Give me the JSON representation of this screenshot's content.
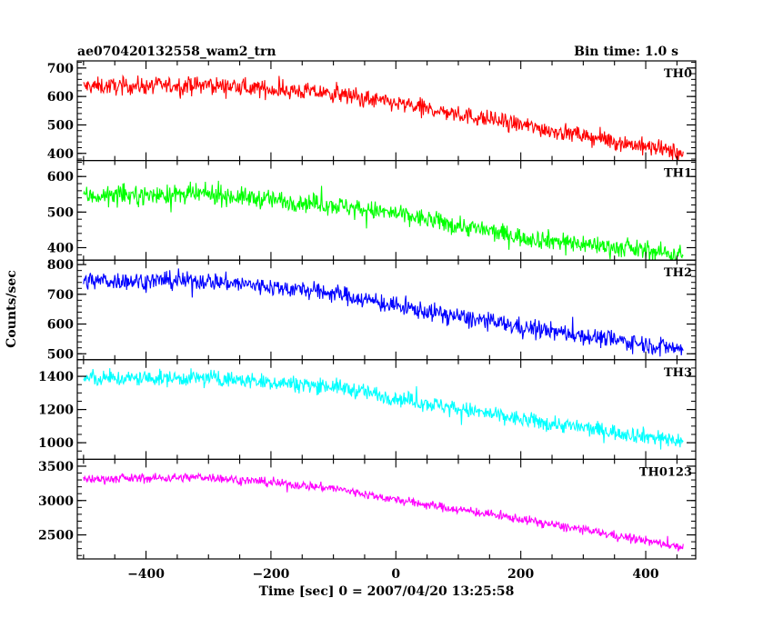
{
  "chart_data": {
    "type": "line",
    "title": "ae070420132558_wam2_trn",
    "subtitle": "Bin time: 1.0 s",
    "xlabel": "Time [sec] 0 = 2007/04/20 13:25:58",
    "ylabel": "Counts/sec",
    "xlim": [
      -510,
      480
    ],
    "x_data_range": [
      -500,
      460
    ],
    "x_ticks": [
      -400,
      -200,
      0,
      200,
      400
    ],
    "grid": false,
    "panels": [
      {
        "name": "TH0",
        "color": "#ff0000",
        "ylim": [
          375,
          725
        ],
        "y_ticks": [
          400,
          500,
          600,
          700
        ],
        "trend": {
          "x": [
            -500,
            -300,
            -100,
            0,
            200,
            460
          ],
          "y": [
            635,
            640,
            610,
            575,
            500,
            400
          ]
        },
        "noise": 28
      },
      {
        "name": "TH1",
        "color": "#00ff00",
        "ylim": [
          365,
          645
        ],
        "y_ticks": [
          400,
          500,
          600
        ],
        "trend": {
          "x": [
            -500,
            -300,
            -100,
            0,
            200,
            460
          ],
          "y": [
            545,
            550,
            520,
            495,
            430,
            380
          ]
        },
        "noise": 25
      },
      {
        "name": "TH2",
        "color": "#0000ff",
        "ylim": [
          480,
          815
        ],
        "y_ticks": [
          500,
          600,
          700,
          800
        ],
        "trend": {
          "x": [
            -500,
            -300,
            -100,
            0,
            200,
            460
          ],
          "y": [
            745,
            745,
            705,
            660,
            590,
            515
          ]
        },
        "noise": 28
      },
      {
        "name": "TH3",
        "color": "#00ffff",
        "ylim": [
          900,
          1500
        ],
        "y_ticks": [
          1000,
          1200,
          1400
        ],
        "trend": {
          "x": [
            -500,
            -300,
            -100,
            0,
            200,
            460
          ],
          "y": [
            1385,
            1390,
            1340,
            1270,
            1140,
            1010
          ]
        },
        "noise": 45
      },
      {
        "name": "TH0123",
        "color": "#ff00ff",
        "ylim": [
          2150,
          3600
        ],
        "y_ticks": [
          2500,
          3000,
          3500
        ],
        "trend": {
          "x": [
            -500,
            -300,
            -100,
            0,
            200,
            460
          ],
          "y": [
            3310,
            3340,
            3180,
            3010,
            2730,
            2320
          ]
        },
        "noise": 60
      }
    ]
  }
}
